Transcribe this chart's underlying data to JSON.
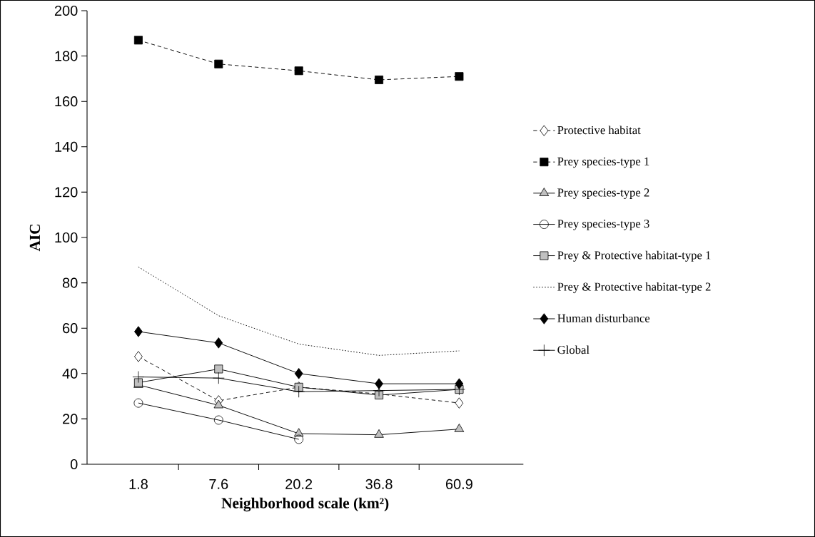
{
  "chart_data": {
    "type": "line",
    "xlabel": "Neighborhood scale (km²)",
    "ylabel": "AIC",
    "categories": [
      "1.8",
      "7.6",
      "20.2",
      "36.8",
      "60.9"
    ],
    "ylim": [
      0,
      200
    ],
    "yticks": [
      0,
      20,
      40,
      60,
      80,
      100,
      120,
      140,
      160,
      180,
      200
    ],
    "legend": "right",
    "series": [
      {
        "name": "Protective habitat",
        "color": "#ffffff",
        "marker": "diamond",
        "line_style": "dashed",
        "values": [
          47.5,
          28,
          34,
          31,
          27
        ]
      },
      {
        "name": "Prey species-type 1",
        "color": "#000000",
        "marker": "square",
        "line_style": "dashed",
        "values": [
          187,
          176.5,
          173.5,
          169.5,
          171
        ]
      },
      {
        "name": "Prey species-type 2",
        "color": "#c0c0c0",
        "marker": "triangle",
        "line_style": "solid",
        "values": [
          35,
          26,
          13.5,
          13,
          15.5
        ]
      },
      {
        "name": "Prey species-type 3",
        "color": "#000000",
        "marker": "circle",
        "line_style": "solid",
        "values": [
          27,
          19.5,
          11,
          null,
          null
        ]
      },
      {
        "name": "Prey & Protective habitat-type 1",
        "color": "#c0c0c0",
        "marker": "square",
        "line_style": "solid",
        "values": [
          36,
          42,
          34,
          30.5,
          33
        ]
      },
      {
        "name": "Prey & Protective habitat-type 2",
        "color": "#000000",
        "marker": "none",
        "line_style": "dotted",
        "values": [
          87,
          65.5,
          53,
          48,
          50
        ]
      },
      {
        "name": "Human disturbance",
        "color": "#000000",
        "marker": "diamond",
        "line_style": "solid",
        "values": [
          58.5,
          53.5,
          40,
          35.5,
          35.5
        ]
      },
      {
        "name": "Global",
        "color": "#000000",
        "marker": "cross",
        "line_style": "solid",
        "values": [
          38.5,
          38,
          32,
          32.5,
          33
        ]
      }
    ]
  }
}
